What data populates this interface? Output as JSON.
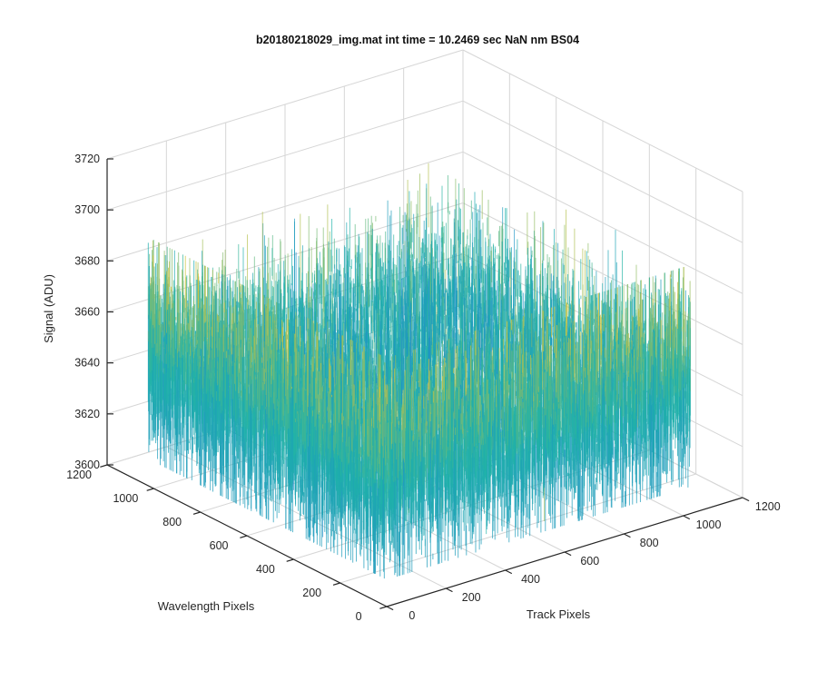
{
  "chart_data": {
    "type": "surface",
    "title": "b20180218029_img.mat int time = 10.2469 sec  NaN nm BS04",
    "xlabel": "Track Pixels",
    "ylabel": "Wavelength Pixels",
    "zlabel": "Signal (ADU)",
    "xlim": [
      0,
      1200
    ],
    "ylim": [
      0,
      1200
    ],
    "zlim": [
      3600,
      3720
    ],
    "x_ticks": [
      0,
      200,
      400,
      600,
      800,
      1000,
      1200
    ],
    "y_ticks": [
      0,
      200,
      400,
      600,
      800,
      1000,
      1200
    ],
    "z_ticks": [
      3600,
      3620,
      3640,
      3660,
      3680,
      3700,
      3720
    ],
    "grid": true,
    "colormap": "parula",
    "surface": {
      "x_range": [
        0,
        1024
      ],
      "y_range": [
        0,
        1024
      ],
      "mean_signal": 3654,
      "noise_low": 3618,
      "noise_high": 3705
    },
    "colors": {
      "low": "#1f8ec9",
      "mid": "#1fb3a8",
      "high": "#d9c43a"
    }
  }
}
